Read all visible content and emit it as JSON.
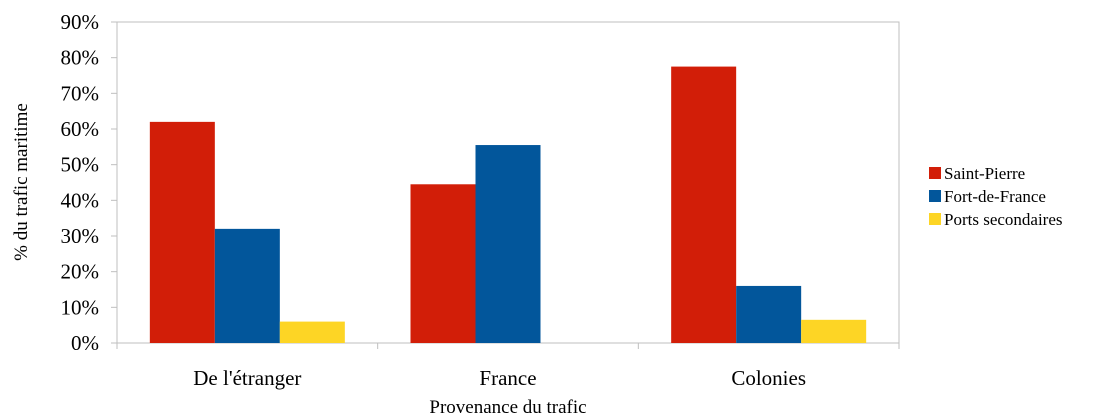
{
  "chart_data": {
    "type": "bar",
    "xlabel": "Provenance du trafic",
    "ylabel": "% du trafic maritime",
    "ylim": [
      0,
      90
    ],
    "y_ticks": [
      "0%",
      "10%",
      "20%",
      "30%",
      "40%",
      "50%",
      "60%",
      "70%",
      "80%",
      "90%"
    ],
    "categories": [
      "De l'étranger",
      "France",
      "Colonies"
    ],
    "series": [
      {
        "name": "Saint-Pierre",
        "color": "#d21e08",
        "values": [
          62,
          44.5,
          77.5
        ]
      },
      {
        "name": "Fort-de-France",
        "color": "#02569b",
        "values": [
          32,
          55.5,
          16
        ]
      },
      {
        "name": "Ports secondaires",
        "color": "#fdd525",
        "values": [
          6,
          0,
          6.5
        ]
      }
    ],
    "grid": false,
    "legend_position": "right"
  }
}
